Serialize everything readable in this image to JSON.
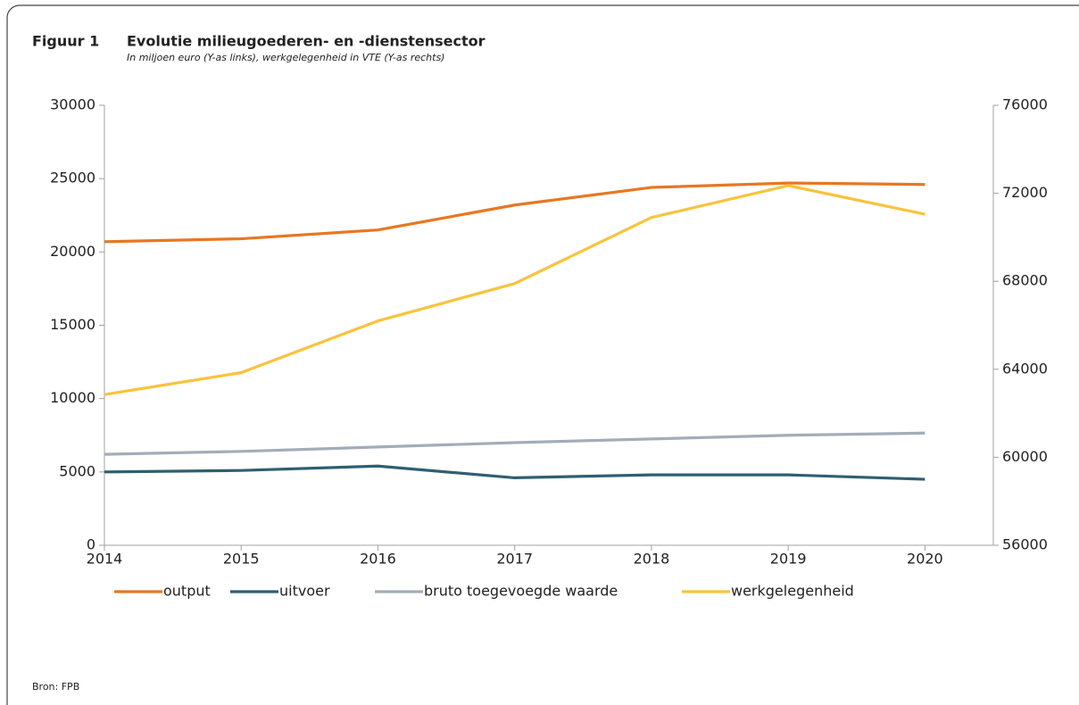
{
  "chart_data": {
    "type": "line",
    "label": "Figuur 1",
    "title": "Evolutie milieugoederen- en -dienstensector",
    "subtitle": "In miljoen euro (Y-as links), werkgelegenheid in VTE (Y-as rechts)",
    "source": "Bron: FPB",
    "x": [
      2014,
      2015,
      2016,
      2017,
      2018,
      2019,
      2020
    ],
    "xlim": [
      2014,
      2020.5
    ],
    "xticks": [
      2014,
      2015,
      2016,
      2017,
      2018,
      2019,
      2020
    ],
    "ylim": [
      0,
      30000
    ],
    "yticks": [
      0,
      5000,
      10000,
      15000,
      20000,
      25000,
      30000
    ],
    "y2lim": [
      56000,
      76000
    ],
    "y2ticks": [
      56000,
      60000,
      64000,
      68000,
      72000,
      76000
    ],
    "legend": "bottom",
    "series": [
      {
        "name": "output",
        "color": "#e87722",
        "values": [
          20700,
          20900,
          21500,
          23200,
          24400,
          24700,
          24600
        ]
      },
      {
        "name": "uitvoer",
        "color": "#2e5f72",
        "values": [
          5000,
          5100,
          5400,
          4600,
          4800,
          4800,
          4500
        ]
      },
      {
        "name": "bruto toegevoegde waarde",
        "color": "#a3adb8",
        "values": [
          6200,
          6400,
          6700,
          7000,
          7250,
          7500,
          7650
        ]
      },
      {
        "name": "werkgelegenheid",
        "color": "#f9c33c",
        "axis": "y2",
        "values": [
          62850,
          63850,
          66200,
          67900,
          70900,
          72350,
          71050
        ]
      }
    ]
  }
}
